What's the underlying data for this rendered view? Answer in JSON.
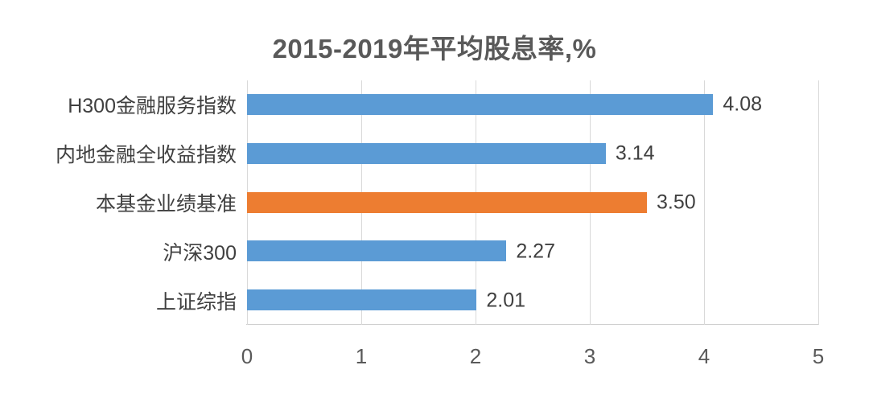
{
  "chart_data": {
    "type": "bar",
    "orientation": "horizontal",
    "title": "2015-2019年平均股息率,%",
    "categories": [
      "H300金融服务指数",
      "内地金融全收益指数",
      "本基金业绩基准",
      "沪深300",
      "上证综指"
    ],
    "values": [
      4.08,
      3.14,
      3.5,
      2.27,
      2.01
    ],
    "value_labels": [
      "4.08",
      "3.14",
      "3.50",
      "2.27",
      "2.01"
    ],
    "bar_colors": [
      "#5B9BD5",
      "#5B9BD5",
      "#ED7D31",
      "#5B9BD5",
      "#5B9BD5"
    ],
    "xlabel": "",
    "ylabel": "",
    "xlim": [
      0,
      5
    ],
    "x_ticks": [
      0,
      1,
      2,
      3,
      4,
      5
    ],
    "grid": true,
    "legend_position": "none",
    "colors": {
      "series_default": "#5B9BD5",
      "series_highlight": "#ED7D31",
      "gridline": "#D9D9D9",
      "axis_line": "#CFCFCF",
      "title_text": "#595959",
      "tick_text": "#595959",
      "label_text": "#404040",
      "background": "#FFFFFF"
    }
  }
}
